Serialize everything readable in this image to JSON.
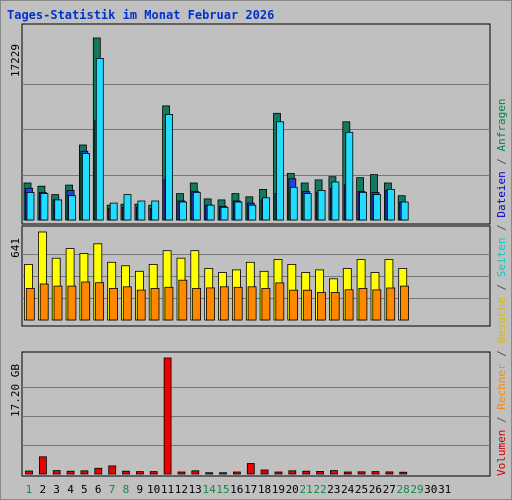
{
  "chart_data": {
    "type": "bar",
    "title": "Tages-Statistik im Monat Februar 2026",
    "x": [
      "1",
      "2",
      "3",
      "4",
      "5",
      "6",
      "7",
      "8",
      "9",
      "10",
      "11",
      "12",
      "13",
      "14",
      "15",
      "16",
      "17",
      "18",
      "19",
      "20",
      "21",
      "22",
      "23",
      "24",
      "25",
      "26",
      "27",
      "28",
      "29",
      "30",
      "31"
    ],
    "weekend_days": [
      "1",
      "7",
      "8",
      "14",
      "15",
      "21",
      "22",
      "28",
      "29"
    ],
    "future_days": [
      "29",
      "30",
      "31"
    ],
    "legend_right": [
      {
        "name": "Volumen",
        "color": "#cc0000"
      },
      {
        "name": "/",
        "color": "#555555"
      },
      {
        "name": "Rechner",
        "color": "#ff8800"
      },
      {
        "name": "/",
        "color": "#555555"
      },
      {
        "name": "Besuche",
        "color": "#ddbb00"
      },
      {
        "name": "/",
        "color": "#555555"
      },
      {
        "name": "Seiten",
        "color": "#00cccc"
      },
      {
        "name": "/",
        "color": "#555555"
      },
      {
        "name": "Dateien",
        "color": "#0000cc"
      },
      {
        "name": "/",
        "color": "#555555"
      },
      {
        "name": "Anfragen",
        "color": "#008844"
      }
    ],
    "panels": [
      {
        "ymax_label": "17229",
        "ymax": 17229,
        "series": [
          {
            "name": "Anfragen",
            "color": "#117a5e",
            "values": [
              3500,
              3200,
              2400,
              3300,
              7100,
              17229,
              1400,
              1500,
              1500,
              1400,
              10800,
              2500,
              3500,
              2000,
              1900,
              2500,
              2200,
              2900,
              10100,
              4400,
              3500,
              3800,
              4100,
              9300,
              4000,
              4300,
              3500,
              2300,
              0,
              0,
              0
            ]
          },
          {
            "name": "Dateien",
            "color": "#2244dd",
            "values": [
              3000,
              2600,
              1900,
              2800,
              6500,
              9400,
              1100,
              1200,
              1200,
              1100,
              3800,
              1800,
              2700,
              1400,
              1300,
              1800,
              1600,
              1900,
              2500,
              3900,
              2700,
              2600,
              3000,
              3300,
              2700,
              2600,
              2800,
              1700,
              0,
              0,
              0
            ]
          },
          {
            "name": "Seiten",
            "color": "#22ddff",
            "values": [
              2600,
              2500,
              1900,
              2300,
              6300,
              15300,
              1600,
              2400,
              1800,
              1800,
              10000,
              1700,
              2600,
              1400,
              1200,
              1700,
              1400,
              2100,
              9300,
              3100,
              2500,
              2800,
              3600,
              8300,
              2600,
              2400,
              2900,
              1700,
              0,
              0,
              0
            ]
          }
        ]
      },
      {
        "ymax_label": "641",
        "ymax": 641,
        "series": [
          {
            "name": "Besuche",
            "color": "#ffff00",
            "values": [
              405,
              641,
              450,
              520,
              484,
              555,
              420,
              395,
              355,
              405,
              505,
              450,
              505,
              375,
              345,
              365,
              420,
              355,
              440,
              405,
              345,
              365,
              300,
              375,
              440,
              345,
              440,
              375,
              0,
              0,
              0
            ]
          },
          {
            "name": "Rechner",
            "color": "#ff8800",
            "values": [
              230,
              262,
              247,
              247,
              277,
              272,
              230,
              242,
              218,
              230,
              238,
              290,
              230,
              234,
              242,
              238,
              242,
              230,
              270,
              217,
              217,
              200,
              200,
              220,
              230,
              219,
              233,
              247,
              0,
              0,
              0
            ]
          }
        ]
      },
      {
        "ymax_label": "17.20 GB",
        "ymax": 17.2,
        "series": [
          {
            "name": "Volumen",
            "color": "#ee0000",
            "values": [
              0.45,
              2.55,
              0.5,
              0.42,
              0.47,
              0.85,
              1.2,
              0.42,
              0.35,
              0.35,
              17.2,
              0.3,
              0.48,
              0.2,
              0.2,
              0.3,
              1.55,
              0.6,
              0.3,
              0.47,
              0.42,
              0.38,
              0.5,
              0.3,
              0.33,
              0.35,
              0.31,
              0.27,
              0,
              0,
              0
            ]
          }
        ]
      }
    ]
  }
}
